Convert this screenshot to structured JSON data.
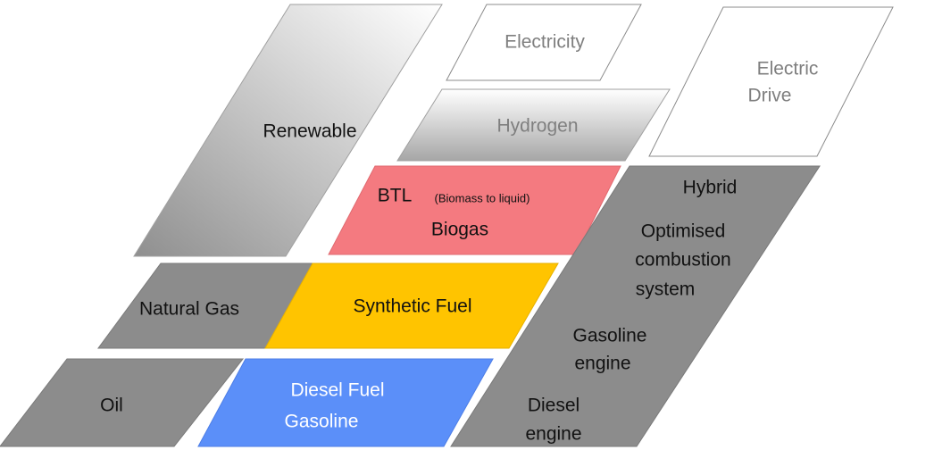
{
  "nodes": [
    {
      "lines": [
        "Renewable"
      ]
    },
    {
      "lines": [
        "Electricity"
      ]
    },
    {
      "lines": [
        "Hydrogen"
      ]
    },
    {
      "lines": [
        "Electric",
        "Drive"
      ]
    },
    {
      "lines": [
        "BTL",
        "Biogas"
      ],
      "note": "(Biomass to liquid)"
    },
    {
      "lines": [
        "Natural Gas"
      ]
    },
    {
      "lines": [
        "Synthetic Fuel"
      ]
    },
    {
      "lines": [
        "Oil"
      ]
    },
    {
      "lines": [
        "Diesel Fuel",
        "Gasoline"
      ]
    },
    {
      "lines": [
        "Hybrid",
        "Optimised",
        "combustion",
        "system",
        "Gasoline",
        "engine",
        "Diesel",
        "engine"
      ]
    }
  ]
}
